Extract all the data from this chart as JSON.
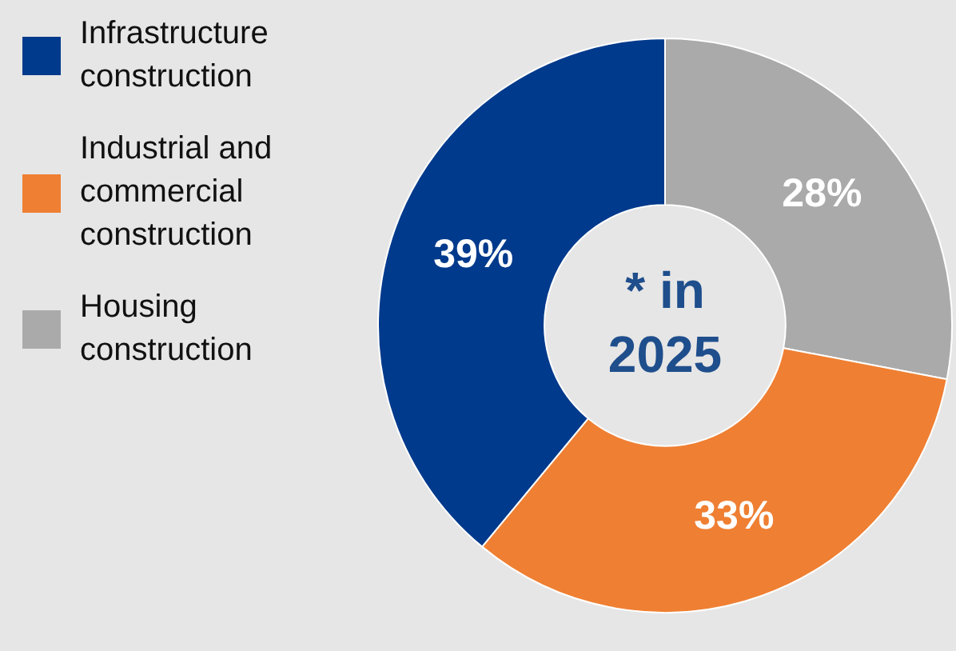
{
  "chart_data": {
    "type": "donut",
    "categories": [
      "Infrastructure construction",
      "Industrial and commercial construction",
      "Housing construction"
    ],
    "values": [
      39,
      33,
      28
    ],
    "colors": [
      "#003a8c",
      "#ef7f32",
      "#aaaaaa"
    ],
    "value_labels": [
      "39%",
      "33%",
      "28%"
    ],
    "legend": "left",
    "annotations": [
      "* in 2025"
    ]
  }
}
